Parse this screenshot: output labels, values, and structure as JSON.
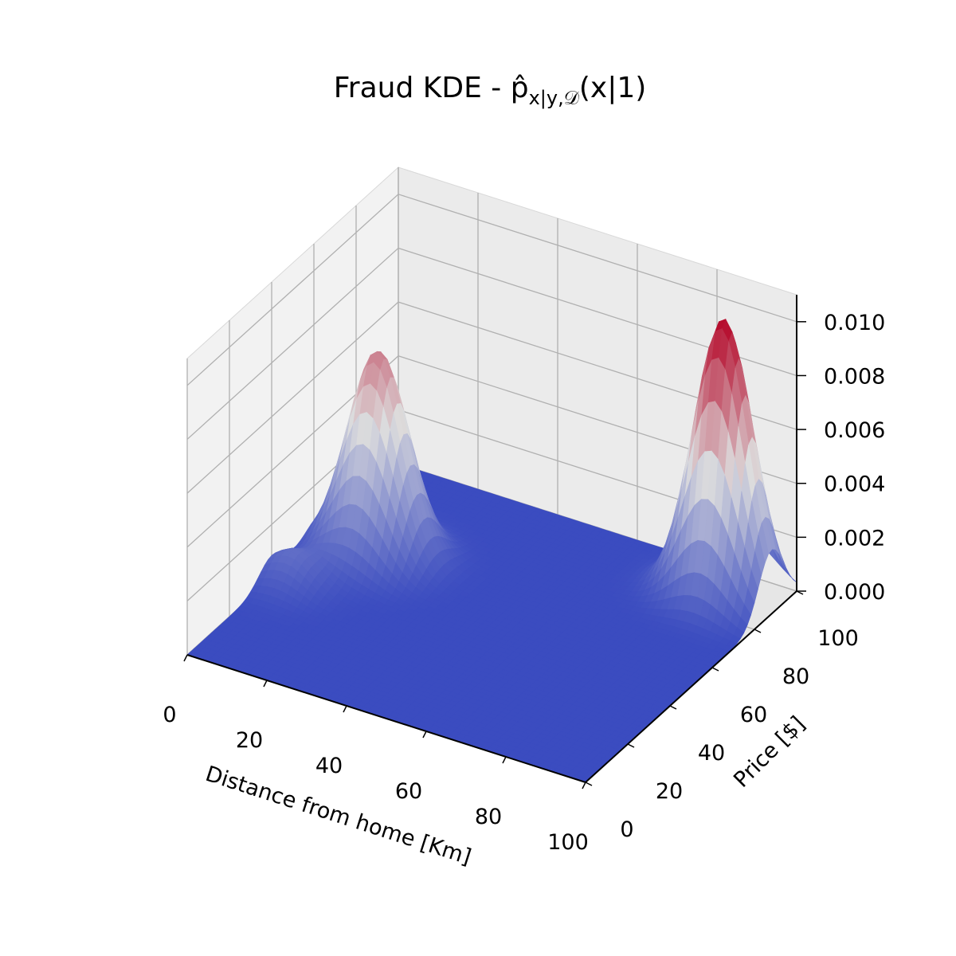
{
  "chart_data": {
    "type": "surface3d",
    "title": "Fraud KDE - p̂",
    "title_math": {
      "subscript": "x|y,",
      "subscript_script": "𝒟",
      "paren": "(x|1)"
    },
    "xlabel": "Distance from home [Km]",
    "ylabel": "Price [$]",
    "zlabel": "",
    "xlim": [
      0,
      100
    ],
    "ylim": [
      0,
      100
    ],
    "zlim": [
      0,
      0.011
    ],
    "xticks": [
      "0",
      "20",
      "40",
      "60",
      "80",
      "100"
    ],
    "yticks": [
      "0",
      "20",
      "40",
      "60",
      "80",
      "100"
    ],
    "zticks": [
      "0.000",
      "0.002",
      "0.004",
      "0.006",
      "0.008",
      "0.010"
    ],
    "colormap": "coolwarm",
    "grid": true,
    "peaks": [
      {
        "x": 15,
        "y": 62,
        "height": 0.0076,
        "sigma_x": 7,
        "sigma_y": 7
      },
      {
        "x": 5,
        "y": 40,
        "height": 0.0012,
        "sigma_x": 6,
        "sigma_y": 6
      },
      {
        "x": 88,
        "y": 88,
        "height": 0.0104,
        "sigma_x": 7,
        "sigma_y": 6
      }
    ],
    "colors": {
      "low": "#3b4cc0",
      "mid": "#dddddd",
      "high": "#b40426",
      "pane": "#f2f2f2",
      "grid": "#b0b0b0"
    }
  }
}
